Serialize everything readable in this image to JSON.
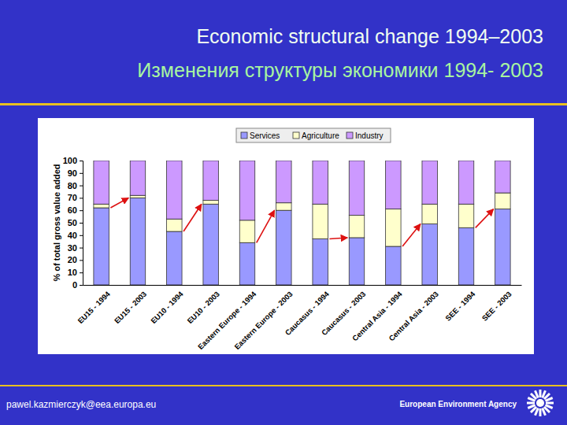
{
  "chart_data": {
    "type": "bar",
    "stacked": true,
    "title": "Economic structural change 1994–2003",
    "subtitle": "Изменения структуры экономики 1994- 2003",
    "y_label": "% of total gross value added",
    "categories": [
      "EU15 - 1994",
      "EU15 - 2003",
      "EU10 - 1994",
      "EU10 - 2003",
      "Eastern Europe - 1994",
      "Eastern Europe - 2003",
      "Caucasus - 1994",
      "Caucasus - 2003",
      "Central Asia - 1994",
      "Central Asia - 2003",
      "SEE - 1994",
      "SEE - 2003"
    ],
    "series": [
      {
        "name": "Services",
        "color": "#9999ff",
        "values": [
          62,
          70,
          43,
          65,
          34,
          60,
          37,
          38,
          31,
          49,
          46,
          61
        ]
      },
      {
        "name": "Agriculture",
        "color": "#ffffcc",
        "values": [
          3,
          2,
          10,
          3,
          18,
          6,
          28,
          18,
          30,
          16,
          19,
          13
        ]
      },
      {
        "name": "Industry",
        "color": "#cc99ff",
        "values": [
          35,
          28,
          47,
          32,
          48,
          34,
          35,
          44,
          39,
          35,
          35,
          26
        ]
      }
    ],
    "ylim": [
      0,
      100
    ],
    "yticks": [
      0,
      10,
      20,
      30,
      40,
      50,
      60,
      70,
      80,
      90,
      100
    ],
    "legend": "top"
  },
  "footer": {
    "email": "pawel.kazmierczyk@eea.europa.eu",
    "organization": "European Environment Agency"
  }
}
